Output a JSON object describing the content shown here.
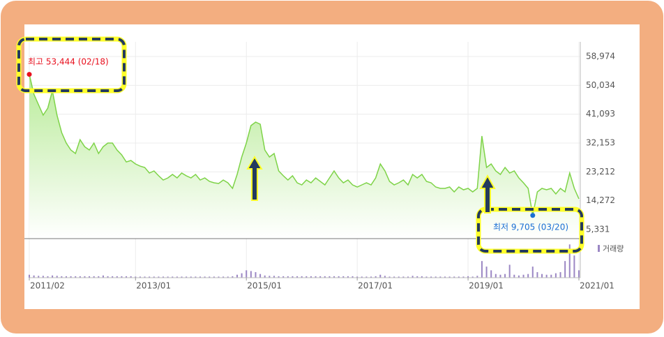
{
  "chart_data": {
    "type": "line",
    "x": [
      "2011/02",
      "2011/03",
      "2011/04",
      "2011/05",
      "2011/06",
      "2011/07",
      "2011/08",
      "2011/09",
      "2011/10",
      "2011/11",
      "2011/12",
      "2012/01",
      "2012/02",
      "2012/03",
      "2012/04",
      "2012/05",
      "2012/06",
      "2012/07",
      "2012/08",
      "2012/09",
      "2012/10",
      "2012/11",
      "2012/12",
      "2013/01",
      "2013/02",
      "2013/03",
      "2013/04",
      "2013/05",
      "2013/06",
      "2013/07",
      "2013/08",
      "2013/09",
      "2013/10",
      "2013/11",
      "2013/12",
      "2014/01",
      "2014/02",
      "2014/03",
      "2014/04",
      "2014/05",
      "2014/06",
      "2014/07",
      "2014/08",
      "2014/09",
      "2014/10",
      "2014/11",
      "2014/12",
      "2015/01",
      "2015/02",
      "2015/03",
      "2015/04",
      "2015/05",
      "2015/06",
      "2015/07",
      "2015/08",
      "2015/09",
      "2015/10",
      "2015/11",
      "2015/12",
      "2016/01",
      "2016/02",
      "2016/03",
      "2016/04",
      "2016/05",
      "2016/06",
      "2016/07",
      "2016/08",
      "2016/09",
      "2016/10",
      "2016/11",
      "2016/12",
      "2017/01",
      "2017/02",
      "2017/03",
      "2017/04",
      "2017/05",
      "2017/06",
      "2017/07",
      "2017/08",
      "2017/09",
      "2017/10",
      "2017/11",
      "2017/12",
      "2018/01",
      "2018/02",
      "2018/03",
      "2018/04",
      "2018/05",
      "2018/06",
      "2018/07",
      "2018/08",
      "2018/09",
      "2018/10",
      "2018/11",
      "2018/12",
      "2019/01",
      "2019/02",
      "2019/03",
      "2019/04",
      "2019/05",
      "2019/06",
      "2019/07",
      "2019/08",
      "2019/09",
      "2019/10",
      "2019/11",
      "2019/12",
      "2020/01",
      "2020/02",
      "2020/03",
      "2020/04",
      "2020/05",
      "2020/06",
      "2020/07",
      "2020/08",
      "2020/09",
      "2020/10",
      "2020/11",
      "2020/12",
      "2021/01"
    ],
    "series": [
      {
        "color": "#7ed348",
        "values": [
          53444,
          47300,
          44050,
          40800,
          42970,
          48400,
          40800,
          35400,
          32150,
          30000,
          28900,
          33200,
          31000,
          30000,
          32150,
          28900,
          31000,
          32150,
          32150,
          30000,
          28500,
          26300,
          26750,
          25660,
          25000,
          24580,
          22850,
          23500,
          22000,
          20690,
          21340,
          22420,
          21340,
          22850,
          22000,
          21340,
          22420,
          20690,
          21340,
          20260,
          19820,
          19600,
          20690,
          19820,
          18100,
          22420,
          27830,
          32150,
          37560,
          38640,
          37990,
          30000,
          27830,
          28900,
          23500,
          22000,
          20690,
          22000,
          19820,
          19170,
          20690,
          19820,
          21340,
          20260,
          19170,
          21340,
          23500,
          21340,
          19820,
          20690,
          19170,
          18530,
          19170,
          19820,
          19170,
          21340,
          25660,
          23500,
          20260,
          19170,
          19820,
          20690,
          19170,
          22420,
          21340,
          22420,
          20260,
          19820,
          18530,
          18100,
          18100,
          18530,
          17010,
          18530,
          17660,
          18100,
          17010,
          18100,
          34320,
          24580,
          25660,
          23500,
          22420,
          24580,
          22850,
          23500,
          21340,
          19820,
          18100,
          9705,
          17010,
          18100,
          17660,
          18100,
          16370,
          18100,
          17010,
          22850,
          18100,
          14850
        ]
      }
    ],
    "volume": {
      "name": "거래량",
      "color": "#9b87c4",
      "vlim": [
        0,
        100
      ],
      "values": [
        8,
        6,
        5,
        5,
        4,
        6,
        5,
        4,
        4,
        4,
        4,
        4,
        4,
        4,
        4,
        4,
        6,
        4,
        4,
        4,
        4,
        4,
        4,
        3,
        3,
        3,
        3,
        3,
        3,
        3,
        3,
        3,
        3,
        3,
        3,
        3,
        3,
        3,
        3,
        3,
        3,
        3,
        3,
        3,
        4,
        8,
        12,
        20,
        18,
        15,
        10,
        6,
        5,
        5,
        4,
        4,
        4,
        4,
        4,
        4,
        4,
        4,
        4,
        4,
        4,
        4,
        4,
        4,
        4,
        4,
        4,
        3,
        3,
        3,
        3,
        4,
        8,
        5,
        3,
        3,
        3,
        3,
        3,
        5,
        4,
        4,
        3,
        3,
        3,
        3,
        3,
        3,
        3,
        3,
        3,
        4,
        3,
        5,
        45,
        30,
        20,
        10,
        8,
        10,
        35,
        8,
        6,
        8,
        10,
        30,
        15,
        10,
        8,
        8,
        12,
        15,
        45,
        90,
        60,
        20
      ]
    },
    "xlim": [
      "2011/02",
      "2021/01"
    ],
    "xticks": [
      "2011/02",
      "2013/01",
      "2015/01",
      "2017/01",
      "2019/01",
      "2021/01"
    ],
    "ylim": [
      2519,
      61353
    ],
    "yticks": [
      {
        "value": 58974,
        "label": "58,974"
      },
      {
        "value": 50034,
        "label": "50,034"
      },
      {
        "value": 41093,
        "label": "41,093"
      },
      {
        "value": 32153,
        "label": "32,153"
      },
      {
        "value": 23212,
        "label": "23,212"
      },
      {
        "value": 14272,
        "label": "14,272"
      },
      {
        "value": 5331,
        "label": "5,331"
      }
    ],
    "grid": true,
    "annotations": [
      {
        "label": "최고 53,444 (02/18)",
        "x": "2011/02",
        "color": "#e8101e"
      },
      {
        "label": "최저 9,705 (03/20)",
        "x": "2020/03",
        "color": "#1a6fd4"
      }
    ]
  }
}
